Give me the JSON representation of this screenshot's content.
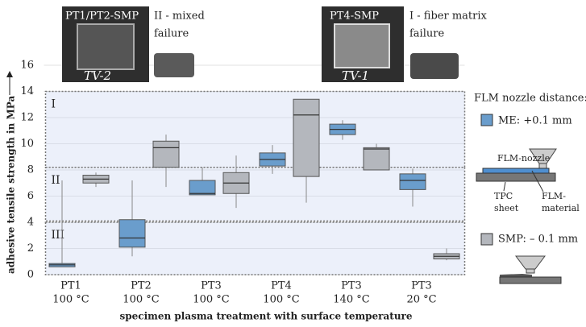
{
  "chart_data": {
    "type": "box",
    "y_label": "adhesive tensile strength in MPa",
    "x_label": "specimen plasma treatment with surface temperature",
    "categories": [
      "PT1",
      "PT2",
      "PT3",
      "PT4",
      "PT3",
      "PT3"
    ],
    "category_sublabels": [
      "100 °C",
      "100 °C",
      "100 °C",
      "100 °C",
      "140 °C",
      "20 °C"
    ],
    "ylim": [
      0,
      16
    ],
    "yticks": [
      0,
      2,
      4,
      6,
      8,
      10,
      12,
      14,
      16
    ],
    "grid": true,
    "regions": [
      {
        "label": "I",
        "range": [
          8.2,
          14
        ]
      },
      {
        "label": "II",
        "range": [
          4.1,
          8.2
        ]
      },
      {
        "label": "III",
        "range": [
          0,
          4
        ]
      }
    ],
    "series": [
      {
        "name": "ME: +0.1 mm",
        "color": "#6a9dcc",
        "values": [
          {
            "min": 0.6,
            "q1": 0.6,
            "median": 0.75,
            "q3": 0.85,
            "max": 7.2
          },
          {
            "min": 1.4,
            "q1": 2.1,
            "median": 2.8,
            "q3": 4.2,
            "max": 7.2
          },
          {
            "min": 6.1,
            "q1": 6.1,
            "median": 6.2,
            "q3": 7.2,
            "max": 8.2
          },
          {
            "min": 7.7,
            "q1": 8.3,
            "median": 8.8,
            "q3": 9.3,
            "max": 9.9
          },
          {
            "min": 10.3,
            "q1": 10.7,
            "median": 11.1,
            "q3": 11.5,
            "max": 11.8
          },
          {
            "min": 5.2,
            "q1": 6.5,
            "median": 7.2,
            "q3": 7.7,
            "max": 8.1
          }
        ]
      },
      {
        "name": "SMP: – 0.1 mm",
        "color": "#b4b7bd",
        "values": [
          {
            "min": 6.7,
            "q1": 7.0,
            "median": 7.3,
            "q3": 7.6,
            "max": 7.8
          },
          {
            "min": 6.7,
            "q1": 8.2,
            "median": 9.7,
            "q3": 10.2,
            "max": 10.7
          },
          {
            "min": 5.1,
            "q1": 6.2,
            "median": 7.0,
            "q3": 7.8,
            "max": 9.1
          },
          {
            "min": 5.5,
            "q1": 7.5,
            "median": 12.2,
            "q3": 13.4,
            "max": 13.4
          },
          {
            "min": 8.0,
            "q1": 8.0,
            "median": 9.6,
            "q3": 9.7,
            "max": 10.0
          },
          {
            "min": 1.1,
            "q1": 1.2,
            "median": 1.4,
            "q3": 1.6,
            "max": 2.0
          }
        ]
      }
    ]
  },
  "legend": {
    "title": "FLM nozzle distance:",
    "nozzle": "FLM-nozzle",
    "sheet": [
      "TPC",
      "sheet"
    ],
    "material": [
      "FLM-",
      "material"
    ]
  },
  "images": [
    {
      "caption": "PT1/PT2-SMP",
      "mark": "TV-2",
      "failure": [
        "II - mixed",
        "failure"
      ]
    },
    {
      "caption": "PT4-SMP",
      "mark": "TV-1",
      "failure": [
        "I - fiber matrix",
        "failure"
      ]
    }
  ]
}
